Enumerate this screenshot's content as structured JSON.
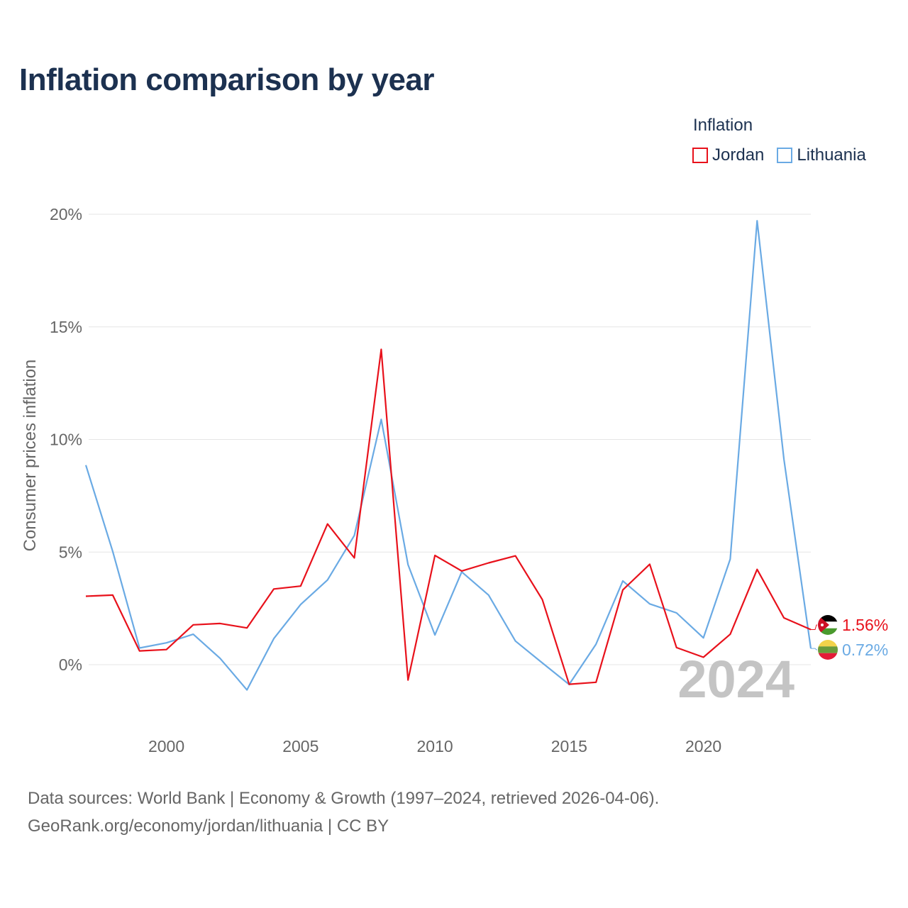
{
  "title": "Inflation comparison by year",
  "legend": {
    "title": "Inflation",
    "items": [
      {
        "name": "Jordan",
        "color": "#e8111b"
      },
      {
        "name": "Lithuania",
        "color": "#6aaae4"
      }
    ]
  },
  "footer": {
    "line1": "Data sources: World Bank | Economy & Growth (1997–2024, retrieved 2026-04-06).",
    "line2": "GeoRank.org/economy/jordan/lithuania | CC BY"
  },
  "chart_data": {
    "type": "line",
    "title": "Inflation comparison by year",
    "xlabel": "",
    "ylabel": "Consumer prices inflation",
    "x": [
      1997,
      1998,
      1999,
      2000,
      2001,
      2002,
      2003,
      2004,
      2005,
      2006,
      2007,
      2008,
      2009,
      2010,
      2011,
      2012,
      2013,
      2014,
      2015,
      2016,
      2017,
      2018,
      2019,
      2020,
      2021,
      2022,
      2023,
      2024
    ],
    "xlim": [
      1997,
      2024
    ],
    "ylim": [
      -2.5,
      20
    ],
    "x_ticks": [
      2000,
      2005,
      2010,
      2015,
      2020
    ],
    "x_tick_labels": [
      "2000",
      "2005",
      "2010",
      "2015",
      "2020"
    ],
    "y_ticks": [
      0,
      5,
      10,
      15,
      20
    ],
    "y_tick_labels": [
      "0%",
      "5%",
      "10%",
      "15%",
      "20%"
    ],
    "grid": true,
    "legend_position": "top-right",
    "year_watermark": "2024",
    "series": [
      {
        "name": "Jordan",
        "color": "#e8111b",
        "values": [
          3.04,
          3.09,
          0.61,
          0.67,
          1.77,
          1.83,
          1.63,
          3.36,
          3.49,
          6.25,
          4.74,
          14.0,
          -0.68,
          4.85,
          4.16,
          4.52,
          4.83,
          2.89,
          -0.87,
          -0.78,
          3.32,
          4.46,
          0.76,
          0.33,
          1.35,
          4.23,
          2.08,
          1.56
        ],
        "end_label": "1.56%"
      },
      {
        "name": "Lithuania",
        "color": "#6aaae4",
        "values": [
          8.86,
          5.03,
          0.74,
          0.97,
          1.35,
          0.28,
          -1.12,
          1.16,
          2.67,
          3.76,
          5.74,
          10.89,
          4.44,
          1.32,
          4.12,
          3.09,
          1.05,
          0.08,
          -0.88,
          0.91,
          3.72,
          2.7,
          2.3,
          1.19,
          4.69,
          19.71,
          9.12,
          0.72
        ],
        "end_label": "0.72%"
      }
    ]
  }
}
